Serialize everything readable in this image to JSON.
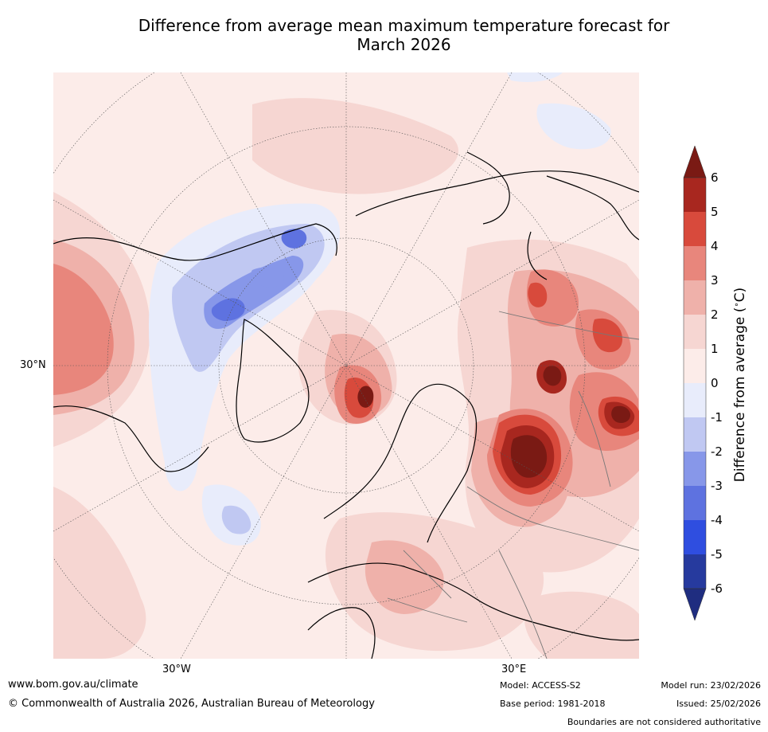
{
  "title_line1": "Difference from average mean maximum temperature forecast for",
  "title_line2": "March 2026",
  "map": {
    "lat_label": "30°N",
    "lon_labels": [
      "30°W",
      "30°E"
    ]
  },
  "colorbar": {
    "label": "Difference from average (∘C)",
    "ticks": [
      "6",
      "5",
      "4",
      "3",
      "2",
      "1",
      "0",
      "-1",
      "-2",
      "-3",
      "-4",
      "-5",
      "-6"
    ],
    "bins": [
      {
        "range": "> 6",
        "color": "#7a1a14"
      },
      {
        "range": "5 to 6",
        "color": "#a8271f"
      },
      {
        "range": "4 to 5",
        "color": "#d84a3c"
      },
      {
        "range": "3 to 4",
        "color": "#e8867c"
      },
      {
        "range": "2 to 3",
        "color": "#efb1aa"
      },
      {
        "range": "1 to 2",
        "color": "#f6d6d2"
      },
      {
        "range": "0 to 1",
        "color": "#fcece9"
      },
      {
        "range": "-1 to 0",
        "color": "#e8ecfb"
      },
      {
        "range": "-2 to -1",
        "color": "#c0c8f2"
      },
      {
        "range": "-3 to -2",
        "color": "#8797e9"
      },
      {
        "range": "-4 to -3",
        "color": "#5e72e0"
      },
      {
        "range": "-5 to -4",
        "color": "#2f4ee0"
      },
      {
        "range": "-6 to -5",
        "color": "#263a9e"
      },
      {
        "range": "< -6",
        "color": "#1f2d80"
      }
    ]
  },
  "footer": {
    "website": "www.bom.gov.au/climate",
    "copyright": "© Commonwealth of Australia 2026, Australian Bureau of Meteorology",
    "model": "Model: ACCESS-S2",
    "base_period": "Base period: 1981-2018",
    "model_run": "Model run: 23/02/2026",
    "issued": "Issued: 25/02/2026",
    "boundaries_note": "Boundaries are not considered authoritative"
  }
}
